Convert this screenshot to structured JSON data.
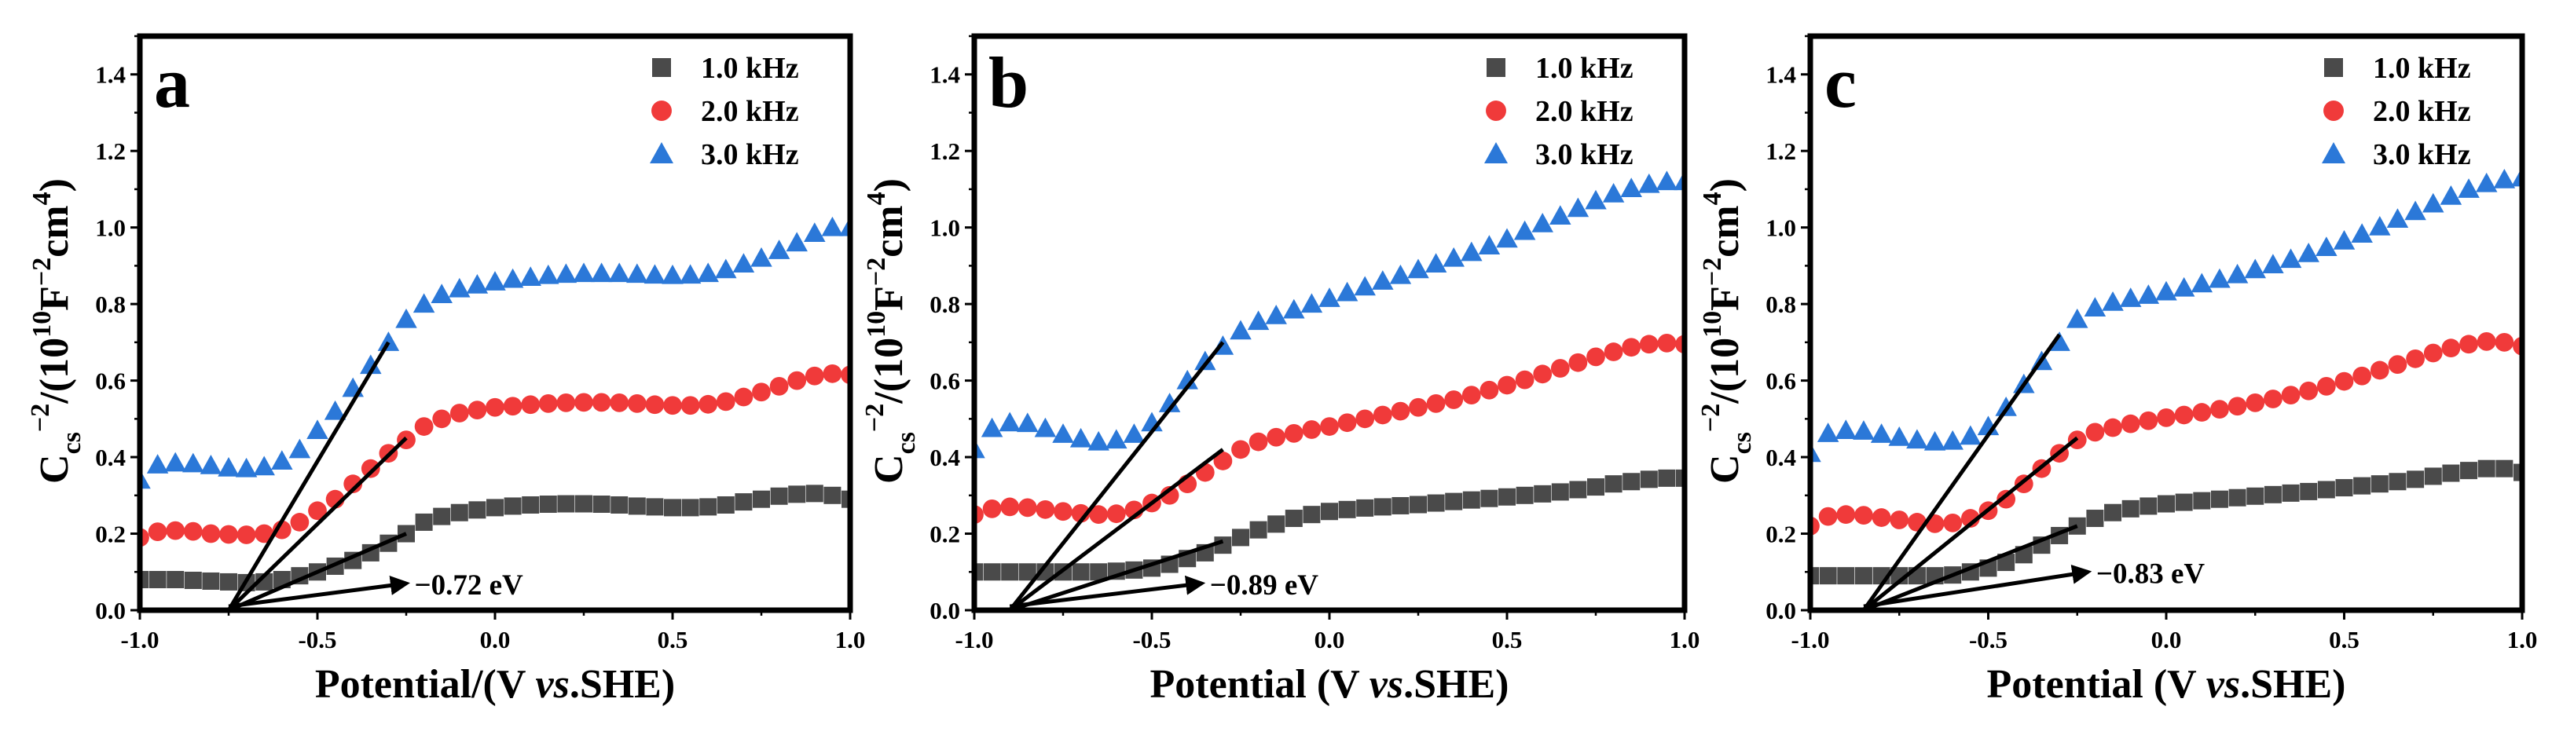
{
  "chart_data": [
    {
      "type": "scatter",
      "panel_label": "a",
      "xlabel_parts": [
        "Potential/(V ",
        "vs",
        ".SHE)"
      ],
      "ylabel_parts": {
        "base": "C",
        "sub": "cs",
        "sup1": "−2",
        "mid": "/(10",
        "sup2": "10",
        "mid2": "F",
        "sup3": "−2",
        "mid3": "cm",
        "sup4": "4",
        "end": ")"
      },
      "xlim": [
        -1.0,
        1.0
      ],
      "ylim": [
        0.0,
        1.5
      ],
      "x_ticks": [
        "-1.0",
        "-0.5",
        "0.0",
        "0.5",
        "1.0"
      ],
      "y_ticks": [
        "0.0",
        "0.2",
        "0.4",
        "0.6",
        "0.8",
        "1.0",
        "1.2",
        "1.4"
      ],
      "legend_position": "top-right",
      "series": [
        {
          "name": "1.0 kHz",
          "marker": "square",
          "color": "#4a4a4a",
          "x": [
            -1.0,
            -0.95,
            -0.9,
            -0.85,
            -0.8,
            -0.75,
            -0.7,
            -0.65,
            -0.6,
            -0.55,
            -0.5,
            -0.45,
            -0.4,
            -0.35,
            -0.3,
            -0.25,
            -0.2,
            -0.15,
            -0.1,
            -0.05,
            0.0,
            0.05,
            0.1,
            0.15,
            0.2,
            0.25,
            0.3,
            0.35,
            0.4,
            0.45,
            0.5,
            0.55,
            0.6,
            0.65,
            0.7,
            0.75,
            0.8,
            0.85,
            0.9,
            0.95,
            1.0
          ],
          "y": [
            0.08,
            0.08,
            0.08,
            0.078,
            0.076,
            0.074,
            0.072,
            0.074,
            0.08,
            0.09,
            0.1,
            0.115,
            0.13,
            0.15,
            0.175,
            0.2,
            0.23,
            0.245,
            0.255,
            0.262,
            0.268,
            0.272,
            0.275,
            0.277,
            0.278,
            0.278,
            0.277,
            0.275,
            0.272,
            0.27,
            0.268,
            0.268,
            0.27,
            0.275,
            0.283,
            0.29,
            0.298,
            0.303,
            0.305,
            0.3,
            0.29
          ]
        },
        {
          "name": "2.0 kHz",
          "marker": "circle",
          "color": "#f03a3a",
          "x": [
            -1.0,
            -0.95,
            -0.9,
            -0.85,
            -0.8,
            -0.75,
            -0.7,
            -0.65,
            -0.6,
            -0.55,
            -0.5,
            -0.45,
            -0.4,
            -0.35,
            -0.3,
            -0.25,
            -0.2,
            -0.15,
            -0.1,
            -0.05,
            0.0,
            0.05,
            0.1,
            0.15,
            0.2,
            0.25,
            0.3,
            0.35,
            0.4,
            0.45,
            0.5,
            0.55,
            0.6,
            0.65,
            0.7,
            0.75,
            0.8,
            0.85,
            0.9,
            0.95,
            1.0
          ],
          "y": [
            0.19,
            0.205,
            0.208,
            0.206,
            0.2,
            0.198,
            0.197,
            0.2,
            0.21,
            0.23,
            0.26,
            0.29,
            0.33,
            0.37,
            0.41,
            0.445,
            0.48,
            0.5,
            0.515,
            0.523,
            0.53,
            0.533,
            0.537,
            0.54,
            0.542,
            0.543,
            0.543,
            0.542,
            0.54,
            0.537,
            0.535,
            0.535,
            0.538,
            0.545,
            0.557,
            0.57,
            0.585,
            0.6,
            0.612,
            0.618,
            0.615
          ]
        },
        {
          "name": "3.0 kHz",
          "marker": "triangle",
          "color": "#2b78d8",
          "x": [
            -1.0,
            -0.95,
            -0.9,
            -0.85,
            -0.8,
            -0.75,
            -0.7,
            -0.65,
            -0.6,
            -0.55,
            -0.5,
            -0.45,
            -0.4,
            -0.35,
            -0.3,
            -0.25,
            -0.2,
            -0.15,
            -0.1,
            -0.05,
            0.0,
            0.05,
            0.1,
            0.15,
            0.2,
            0.25,
            0.3,
            0.35,
            0.4,
            0.45,
            0.5,
            0.55,
            0.6,
            0.65,
            0.7,
            0.75,
            0.8,
            0.85,
            0.9,
            0.95,
            1.0
          ],
          "y": [
            0.34,
            0.38,
            0.385,
            0.383,
            0.378,
            0.372,
            0.37,
            0.375,
            0.39,
            0.42,
            0.47,
            0.52,
            0.58,
            0.64,
            0.7,
            0.76,
            0.8,
            0.825,
            0.84,
            0.85,
            0.858,
            0.865,
            0.87,
            0.875,
            0.878,
            0.88,
            0.88,
            0.88,
            0.878,
            0.876,
            0.875,
            0.876,
            0.88,
            0.89,
            0.905,
            0.92,
            0.94,
            0.96,
            0.985,
            1.0,
            1.0
          ]
        }
      ],
      "fit_lines": [
        {
          "x": [
            -0.75,
            -0.3
          ],
          "y": [
            0.0,
            0.7
          ]
        },
        {
          "x": [
            -0.75,
            -0.25
          ],
          "y": [
            0.0,
            0.45
          ]
        },
        {
          "x": [
            -0.75,
            -0.25
          ],
          "y": [
            0.0,
            0.2
          ]
        }
      ],
      "annotation": {
        "text": "−0.72 eV",
        "arrow_from": [
          -0.75,
          0.01
        ],
        "arrow_to": [
          -0.25,
          0.07
        ],
        "text_x": -0.24,
        "text_y": 0.07
      }
    },
    {
      "type": "scatter",
      "panel_label": "b",
      "xlabel_parts": [
        "Potential (V ",
        "vs",
        ".SHE)"
      ],
      "ylabel_parts": {
        "base": "C",
        "sub": "cs",
        "sup1": "−2",
        "mid": "/(10",
        "sup2": "10",
        "mid2": "F",
        "sup3": "−2",
        "mid3": "cm",
        "sup4": "4",
        "end": ")"
      },
      "xlim": [
        -1.0,
        1.0
      ],
      "ylim": [
        0.0,
        1.5
      ],
      "x_ticks": [
        "-1.0",
        "-0.5",
        "0.0",
        "0.5",
        "1.0"
      ],
      "y_ticks": [
        "0.0",
        "0.2",
        "0.4",
        "0.6",
        "0.8",
        "1.0",
        "1.2",
        "1.4"
      ],
      "legend_position": "top-right",
      "series": [
        {
          "name": "1.0 kHz",
          "marker": "square",
          "color": "#4a4a4a",
          "x": [
            -1.0,
            -0.95,
            -0.9,
            -0.85,
            -0.8,
            -0.75,
            -0.7,
            -0.65,
            -0.6,
            -0.55,
            -0.5,
            -0.45,
            -0.4,
            -0.35,
            -0.3,
            -0.25,
            -0.2,
            -0.15,
            -0.1,
            -0.05,
            0.0,
            0.05,
            0.1,
            0.15,
            0.2,
            0.25,
            0.3,
            0.35,
            0.4,
            0.45,
            0.5,
            0.55,
            0.6,
            0.65,
            0.7,
            0.75,
            0.8,
            0.85,
            0.9,
            0.95,
            1.0
          ],
          "y": [
            0.1,
            0.1,
            0.1,
            0.1,
            0.1,
            0.1,
            0.1,
            0.1,
            0.102,
            0.105,
            0.11,
            0.12,
            0.135,
            0.15,
            0.17,
            0.19,
            0.21,
            0.225,
            0.24,
            0.25,
            0.258,
            0.263,
            0.267,
            0.27,
            0.273,
            0.276,
            0.28,
            0.284,
            0.288,
            0.292,
            0.296,
            0.3,
            0.304,
            0.309,
            0.315,
            0.322,
            0.33,
            0.336,
            0.342,
            0.345,
            0.345
          ]
        },
        {
          "name": "2.0 kHz",
          "marker": "circle",
          "color": "#f03a3a",
          "x": [
            -1.0,
            -0.95,
            -0.9,
            -0.85,
            -0.8,
            -0.75,
            -0.7,
            -0.65,
            -0.6,
            -0.55,
            -0.5,
            -0.45,
            -0.4,
            -0.35,
            -0.3,
            -0.25,
            -0.2,
            -0.15,
            -0.1,
            -0.05,
            0.0,
            0.05,
            0.1,
            0.15,
            0.2,
            0.25,
            0.3,
            0.35,
            0.4,
            0.45,
            0.5,
            0.55,
            0.6,
            0.65,
            0.7,
            0.75,
            0.8,
            0.85,
            0.9,
            0.95,
            1.0
          ],
          "y": [
            0.25,
            0.265,
            0.27,
            0.268,
            0.263,
            0.258,
            0.253,
            0.25,
            0.252,
            0.262,
            0.28,
            0.3,
            0.33,
            0.36,
            0.39,
            0.42,
            0.44,
            0.452,
            0.462,
            0.472,
            0.48,
            0.49,
            0.5,
            0.51,
            0.52,
            0.53,
            0.54,
            0.55,
            0.562,
            0.575,
            0.588,
            0.602,
            0.617,
            0.632,
            0.647,
            0.662,
            0.675,
            0.687,
            0.695,
            0.698,
            0.695
          ]
        },
        {
          "name": "3.0 kHz",
          "marker": "triangle",
          "color": "#2b78d8",
          "x": [
            -1.0,
            -0.95,
            -0.9,
            -0.85,
            -0.8,
            -0.75,
            -0.7,
            -0.65,
            -0.6,
            -0.55,
            -0.5,
            -0.45,
            -0.4,
            -0.35,
            -0.3,
            -0.25,
            -0.2,
            -0.15,
            -0.1,
            -0.05,
            0.0,
            0.05,
            0.1,
            0.15,
            0.2,
            0.25,
            0.3,
            0.35,
            0.4,
            0.45,
            0.5,
            0.55,
            0.6,
            0.65,
            0.7,
            0.75,
            0.8,
            0.85,
            0.9,
            0.95,
            1.0
          ],
          "y": [
            0.42,
            0.475,
            0.49,
            0.488,
            0.475,
            0.46,
            0.448,
            0.44,
            0.445,
            0.46,
            0.49,
            0.54,
            0.6,
            0.65,
            0.69,
            0.73,
            0.755,
            0.77,
            0.785,
            0.8,
            0.815,
            0.83,
            0.845,
            0.86,
            0.875,
            0.89,
            0.905,
            0.92,
            0.935,
            0.952,
            0.97,
            0.99,
            1.01,
            1.03,
            1.05,
            1.07,
            1.088,
            1.102,
            1.113,
            1.12,
            1.12
          ]
        }
      ],
      "fit_lines": [
        {
          "x": [
            -0.9,
            -0.3
          ],
          "y": [
            0.0,
            0.7
          ]
        },
        {
          "x": [
            -0.9,
            -0.3
          ],
          "y": [
            0.0,
            0.42
          ]
        },
        {
          "x": [
            -0.9,
            -0.3
          ],
          "y": [
            0.0,
            0.18
          ]
        }
      ],
      "annotation": {
        "text": "−0.89 eV",
        "arrow_from": [
          -0.9,
          0.01
        ],
        "arrow_to": [
          -0.36,
          0.07
        ],
        "text_x": -0.35,
        "text_y": 0.07
      }
    },
    {
      "type": "scatter",
      "panel_label": "c",
      "xlabel_parts": [
        "Potential (V ",
        "vs",
        ".SHE)"
      ],
      "ylabel_parts": {
        "base": "C",
        "sub": "cs",
        "sup1": "−2",
        "mid": "/(10",
        "sup2": "10",
        "mid2": "F",
        "sup3": "−2",
        "mid3": "cm",
        "sup4": "4",
        "end": ")"
      },
      "xlim": [
        -1.0,
        1.0
      ],
      "ylim": [
        0.0,
        1.5
      ],
      "x_ticks": [
        "-1.0",
        "-0.5",
        "0.0",
        "0.5",
        "1.0"
      ],
      "y_ticks": [
        "0.0",
        "0.2",
        "0.4",
        "0.6",
        "0.8",
        "1.0",
        "1.2",
        "1.4"
      ],
      "legend_position": "top-right",
      "series": [
        {
          "name": "1.0 kHz",
          "marker": "square",
          "color": "#4a4a4a",
          "x": [
            -1.0,
            -0.95,
            -0.9,
            -0.85,
            -0.8,
            -0.75,
            -0.7,
            -0.65,
            -0.6,
            -0.55,
            -0.5,
            -0.45,
            -0.4,
            -0.35,
            -0.3,
            -0.25,
            -0.2,
            -0.15,
            -0.1,
            -0.05,
            0.0,
            0.05,
            0.1,
            0.15,
            0.2,
            0.25,
            0.3,
            0.35,
            0.4,
            0.45,
            0.5,
            0.55,
            0.6,
            0.65,
            0.7,
            0.75,
            0.8,
            0.85,
            0.9,
            0.95,
            1.0
          ],
          "y": [
            0.09,
            0.09,
            0.09,
            0.09,
            0.09,
            0.09,
            0.09,
            0.09,
            0.092,
            0.1,
            0.11,
            0.125,
            0.145,
            0.17,
            0.195,
            0.22,
            0.24,
            0.255,
            0.265,
            0.272,
            0.278,
            0.282,
            0.286,
            0.29,
            0.294,
            0.298,
            0.302,
            0.306,
            0.31,
            0.315,
            0.32,
            0.325,
            0.33,
            0.336,
            0.342,
            0.35,
            0.358,
            0.365,
            0.37,
            0.37,
            0.36
          ]
        },
        {
          "name": "2.0 kHz",
          "marker": "circle",
          "color": "#f03a3a",
          "x": [
            -1.0,
            -0.95,
            -0.9,
            -0.85,
            -0.8,
            -0.75,
            -0.7,
            -0.65,
            -0.6,
            -0.55,
            -0.5,
            -0.45,
            -0.4,
            -0.35,
            -0.3,
            -0.25,
            -0.2,
            -0.15,
            -0.1,
            -0.05,
            0.0,
            0.05,
            0.1,
            0.15,
            0.2,
            0.25,
            0.3,
            0.35,
            0.4,
            0.45,
            0.5,
            0.55,
            0.6,
            0.65,
            0.7,
            0.75,
            0.8,
            0.85,
            0.9,
            0.95,
            1.0
          ],
          "y": [
            0.22,
            0.245,
            0.25,
            0.248,
            0.242,
            0.236,
            0.23,
            0.226,
            0.228,
            0.24,
            0.26,
            0.29,
            0.33,
            0.37,
            0.41,
            0.445,
            0.465,
            0.477,
            0.487,
            0.495,
            0.503,
            0.51,
            0.517,
            0.525,
            0.533,
            0.542,
            0.552,
            0.562,
            0.573,
            0.585,
            0.598,
            0.612,
            0.627,
            0.642,
            0.657,
            0.672,
            0.685,
            0.695,
            0.702,
            0.7,
            0.69
          ]
        },
        {
          "name": "3.0 kHz",
          "marker": "triangle",
          "color": "#2b78d8",
          "x": [
            -1.0,
            -0.95,
            -0.9,
            -0.85,
            -0.8,
            -0.75,
            -0.7,
            -0.65,
            -0.6,
            -0.55,
            -0.5,
            -0.45,
            -0.4,
            -0.35,
            -0.3,
            -0.25,
            -0.2,
            -0.15,
            -0.1,
            -0.05,
            0.0,
            0.05,
            0.1,
            0.15,
            0.2,
            0.25,
            0.3,
            0.35,
            0.4,
            0.45,
            0.5,
            0.55,
            0.6,
            0.65,
            0.7,
            0.75,
            0.8,
            0.85,
            0.9,
            0.95,
            1.0
          ],
          "y": [
            0.41,
            0.462,
            0.47,
            0.468,
            0.46,
            0.452,
            0.445,
            0.44,
            0.442,
            0.455,
            0.48,
            0.53,
            0.59,
            0.65,
            0.7,
            0.76,
            0.79,
            0.805,
            0.815,
            0.823,
            0.832,
            0.842,
            0.853,
            0.865,
            0.877,
            0.89,
            0.903,
            0.917,
            0.932,
            0.948,
            0.965,
            0.983,
            1.002,
            1.022,
            1.042,
            1.062,
            1.082,
            1.1,
            1.115,
            1.125,
            1.13
          ]
        }
      ],
      "fit_lines": [
        {
          "x": [
            -0.85,
            -0.3
          ],
          "y": [
            0.0,
            0.72
          ]
        },
        {
          "x": [
            -0.85,
            -0.25
          ],
          "y": [
            0.0,
            0.45
          ]
        },
        {
          "x": [
            -0.85,
            -0.25
          ],
          "y": [
            0.0,
            0.22
          ]
        }
      ],
      "annotation": {
        "text": "−0.83 eV",
        "arrow_from": [
          -0.85,
          0.01
        ],
        "arrow_to": [
          -0.22,
          0.1
        ],
        "text_x": -0.21,
        "text_y": 0.1
      }
    }
  ]
}
